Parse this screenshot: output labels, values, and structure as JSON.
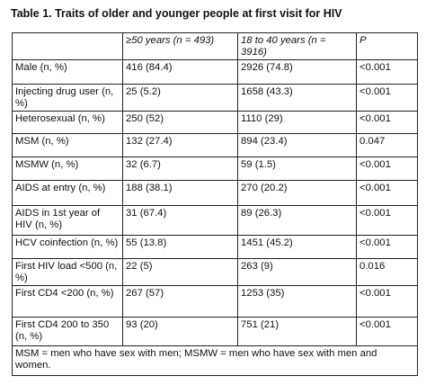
{
  "title": "Table 1. Traits of older and younger people at first visit for HIV",
  "table": {
    "header": [
      "",
      "≥50 years (n = 493)",
      "18 to 40 years (n = 3916)",
      "P"
    ],
    "rows": [
      [
        "Male (n, %)",
        "416 (84.4)",
        "2926 (74.8)",
        "<0.001"
      ],
      [
        "Injecting drug user (n, %)",
        "25 (5.2)",
        "1658 (43.3)",
        "<0.001"
      ],
      [
        "Heterosexual (n, %)",
        "250 (52)",
        "1110 (29)",
        "<0.001"
      ],
      [
        "MSM (n, %)",
        "132 (27.4)",
        "894 (23.4)",
        "0.047"
      ],
      [
        "MSMW (n, %)",
        "32 (6.7)",
        "59 (1.5)",
        "<0.001"
      ],
      [
        "AIDS at entry (n, %)",
        "188 (38.1)",
        "270 (20.2)",
        "<0.001"
      ],
      [
        "AIDS in 1st year of HIV (n, %)",
        "31 (67.4)",
        "89 (26.3)",
        "<0.001"
      ],
      [
        "HCV coinfection (n, %)",
        "55 (13.8)",
        "1451 (45.2)",
        "<0.001"
      ],
      [
        "First HIV load <500 (n, %)",
        "22 (5)",
        "263 (9)",
        "0.016"
      ],
      [
        "First CD4 <200 (n, %)",
        "267 (57)",
        "1253 (35)",
        "<0.001"
      ],
      [
        "First CD4 200 to 350 (n, %)",
        "93 (20)",
        "751 (21)",
        "<0.001"
      ]
    ],
    "note": "MSM = men who have sex with men; MSMW = men who have sex with men and women."
  }
}
